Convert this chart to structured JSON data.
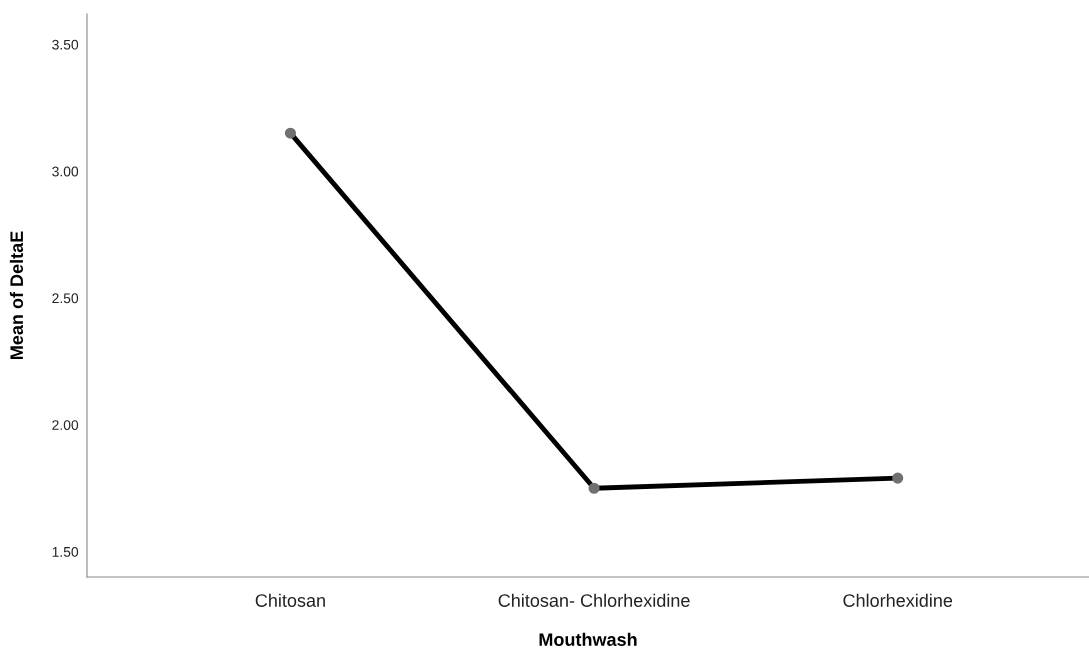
{
  "chart_data": {
    "type": "line",
    "xlabel": "Mouthwash",
    "ylabel": "Mean of DeltaE",
    "categories": [
      "Chitosan",
      "Chitosan- Chlorhexidine",
      "Chlorhexidine"
    ],
    "series": [
      {
        "color": "#000000",
        "values": [
          3.15,
          1.75,
          1.79
        ]
      }
    ],
    "marker": "circle",
    "line_style": "solid",
    "grid": false,
    "legend": false,
    "ylim": [
      1.4,
      3.62
    ],
    "yticks": [
      {
        "value": 1.5,
        "label": "1.50"
      },
      {
        "value": 2.0,
        "label": "2.00"
      },
      {
        "value": 2.5,
        "label": "2.50"
      },
      {
        "value": 3.0,
        "label": "3.00"
      },
      {
        "value": 3.5,
        "label": "3.50"
      }
    ]
  }
}
